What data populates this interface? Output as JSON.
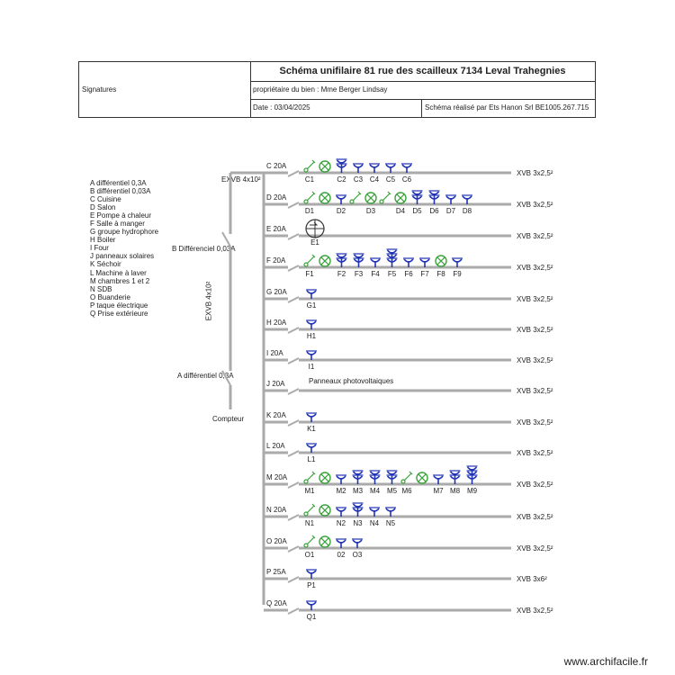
{
  "title_block": {
    "signatures_label": "Signatures",
    "title": "Schéma unifilaire 81 rue des scailleux 7134 Leval Trahegnies",
    "owner": "propriétaire du bien : Mme Berger Lindsay",
    "date": "Date : 03/04/2025",
    "author": "Schéma réalisé par Ets Hanon Srl BE1005.267.715"
  },
  "legend": [
    "A différentiel 0,3A",
    "B différentiel 0,03A",
    "C Cuisine",
    "D Salon",
    "E Pompe à chaleur",
    "F Salle à manger",
    "G groupe hydrophore",
    "H Boiler",
    "I Four",
    "J panneaux solaires",
    "K Séchoir",
    "L Machine à laver",
    "M chambres 1 et 2",
    "N SDB",
    "O Buanderie",
    "P taque électrique",
    "Q Prise extérieure"
  ],
  "main": {
    "feeder_cable_top": "EXVB 4x10²",
    "feeder_cable_vertical": "EXVB 4x10²",
    "diff_b": "B Différenciel 0,03A",
    "diff_a": "A différentiel 0,3A",
    "meter": "Compteur"
  },
  "circuits": [
    {
      "id": "C",
      "breaker": "C 20A",
      "cable": "XVB 3x2,5²",
      "devices": [
        {
          "t": "switch",
          "l": "C1"
        },
        {
          "t": "lamp",
          "l": ""
        },
        {
          "t": "socket2",
          "l": "C2"
        },
        {
          "t": "socket",
          "l": "C3"
        },
        {
          "t": "socket",
          "l": "C4"
        },
        {
          "t": "socket",
          "l": "C5"
        },
        {
          "t": "socket",
          "l": "C6"
        }
      ]
    },
    {
      "id": "D",
      "breaker": "D 20A",
      "cable": "XVB 3x2,5²",
      "devices": [
        {
          "t": "switch",
          "l": "D1"
        },
        {
          "t": "lamp",
          "l": ""
        },
        {
          "t": "socket",
          "l": "D2"
        },
        {
          "t": "switch",
          "l": ""
        },
        {
          "t": "lamp",
          "l": "D3"
        },
        {
          "t": "switch",
          "l": ""
        },
        {
          "t": "lamp",
          "l": "D4"
        },
        {
          "t": "socket2",
          "l": "D5"
        },
        {
          "t": "socket2",
          "l": "D6"
        },
        {
          "t": "socket",
          "l": "D7"
        },
        {
          "t": "socket",
          "l": "D8"
        }
      ]
    },
    {
      "id": "E",
      "breaker": "E 20A",
      "cable": "XVB 3x2,5²",
      "devices": [
        {
          "t": "heatpump",
          "l": "E1"
        }
      ]
    },
    {
      "id": "F",
      "breaker": "F 20A",
      "cable": "XVB 3x2,5²",
      "devices": [
        {
          "t": "switch",
          "l": "F1"
        },
        {
          "t": "lamp",
          "l": ""
        },
        {
          "t": "socket2",
          "l": "F2"
        },
        {
          "t": "socket2",
          "l": "F3"
        },
        {
          "t": "socket",
          "l": "F4"
        },
        {
          "t": "socket3",
          "l": "F5"
        },
        {
          "t": "socket",
          "l": "F6"
        },
        {
          "t": "socket",
          "l": "F7"
        },
        {
          "t": "lamp",
          "l": "F8"
        },
        {
          "t": "socket",
          "l": "F9"
        }
      ]
    },
    {
      "id": "G",
      "breaker": "G 20A",
      "cable": "XVB 3x2,5²",
      "devices": [
        {
          "t": "socket",
          "l": "G1"
        }
      ]
    },
    {
      "id": "H",
      "breaker": "H 20A",
      "cable": "XVB 3x2,5²",
      "devices": [
        {
          "t": "socket",
          "l": "H1"
        }
      ]
    },
    {
      "id": "I",
      "breaker": "I 20A",
      "cable": "XVB 3x2,5²",
      "devices": [
        {
          "t": "socket",
          "l": "I1"
        }
      ]
    },
    {
      "id": "J",
      "breaker": "J 20A",
      "cable": "XVB 3x2,5²",
      "text": "Panneaux photovoltaiques",
      "devices": []
    },
    {
      "id": "K",
      "breaker": "K 20A",
      "cable": "XVB 3x2,5²",
      "devices": [
        {
          "t": "socket",
          "l": "K1"
        }
      ]
    },
    {
      "id": "L",
      "breaker": "L 20A",
      "cable": "XVB 3x2,5²",
      "devices": [
        {
          "t": "socket",
          "l": "L1"
        }
      ]
    },
    {
      "id": "M",
      "breaker": "M 20A",
      "cable": "XVB 3x2,5²",
      "devices": [
        {
          "t": "switch",
          "l": "M1"
        },
        {
          "t": "lamp",
          "l": ""
        },
        {
          "t": "socket",
          "l": "M2"
        },
        {
          "t": "socket2",
          "l": "M3"
        },
        {
          "t": "socket2",
          "l": "M4"
        },
        {
          "t": "socket2",
          "l": "M5"
        },
        {
          "t": "switch",
          "l": "M6"
        },
        {
          "t": "lamp",
          "l": ""
        },
        {
          "t": "socket",
          "l": "M7"
        },
        {
          "t": "socket2",
          "l": "M8"
        },
        {
          "t": "socket3",
          "l": "M9"
        }
      ]
    },
    {
      "id": "N",
      "breaker": "N 20A",
      "cable": "XVB 3x2,5²",
      "devices": [
        {
          "t": "switch",
          "l": "N1"
        },
        {
          "t": "lamp",
          "l": ""
        },
        {
          "t": "socket",
          "l": "N2"
        },
        {
          "t": "socket2",
          "l": "N3"
        },
        {
          "t": "socket",
          "l": "N4"
        },
        {
          "t": "socket",
          "l": "N5"
        }
      ]
    },
    {
      "id": "O",
      "breaker": "O 20A",
      "cable": "XVB 3x2,5²",
      "devices": [
        {
          "t": "switch",
          "l": "O1"
        },
        {
          "t": "lamp",
          "l": ""
        },
        {
          "t": "socket",
          "l": "02"
        },
        {
          "t": "socket",
          "l": "O3"
        }
      ]
    },
    {
      "id": "P",
      "breaker": "P 25A",
      "cable": "XVB 3x6²",
      "devices": [
        {
          "t": "socket",
          "l": "P1"
        }
      ]
    },
    {
      "id": "Q",
      "breaker": "Q 20A",
      "cable": "XVB 3x2,5²",
      "devices": [
        {
          "t": "socket",
          "l": "Q1"
        }
      ]
    }
  ],
  "watermark": "www.archifacile.fr",
  "colors": {
    "socket": "#1f33b5",
    "lamp_switch": "#3aa33a",
    "wire": "#aaaaaa",
    "frame": "#333333"
  }
}
